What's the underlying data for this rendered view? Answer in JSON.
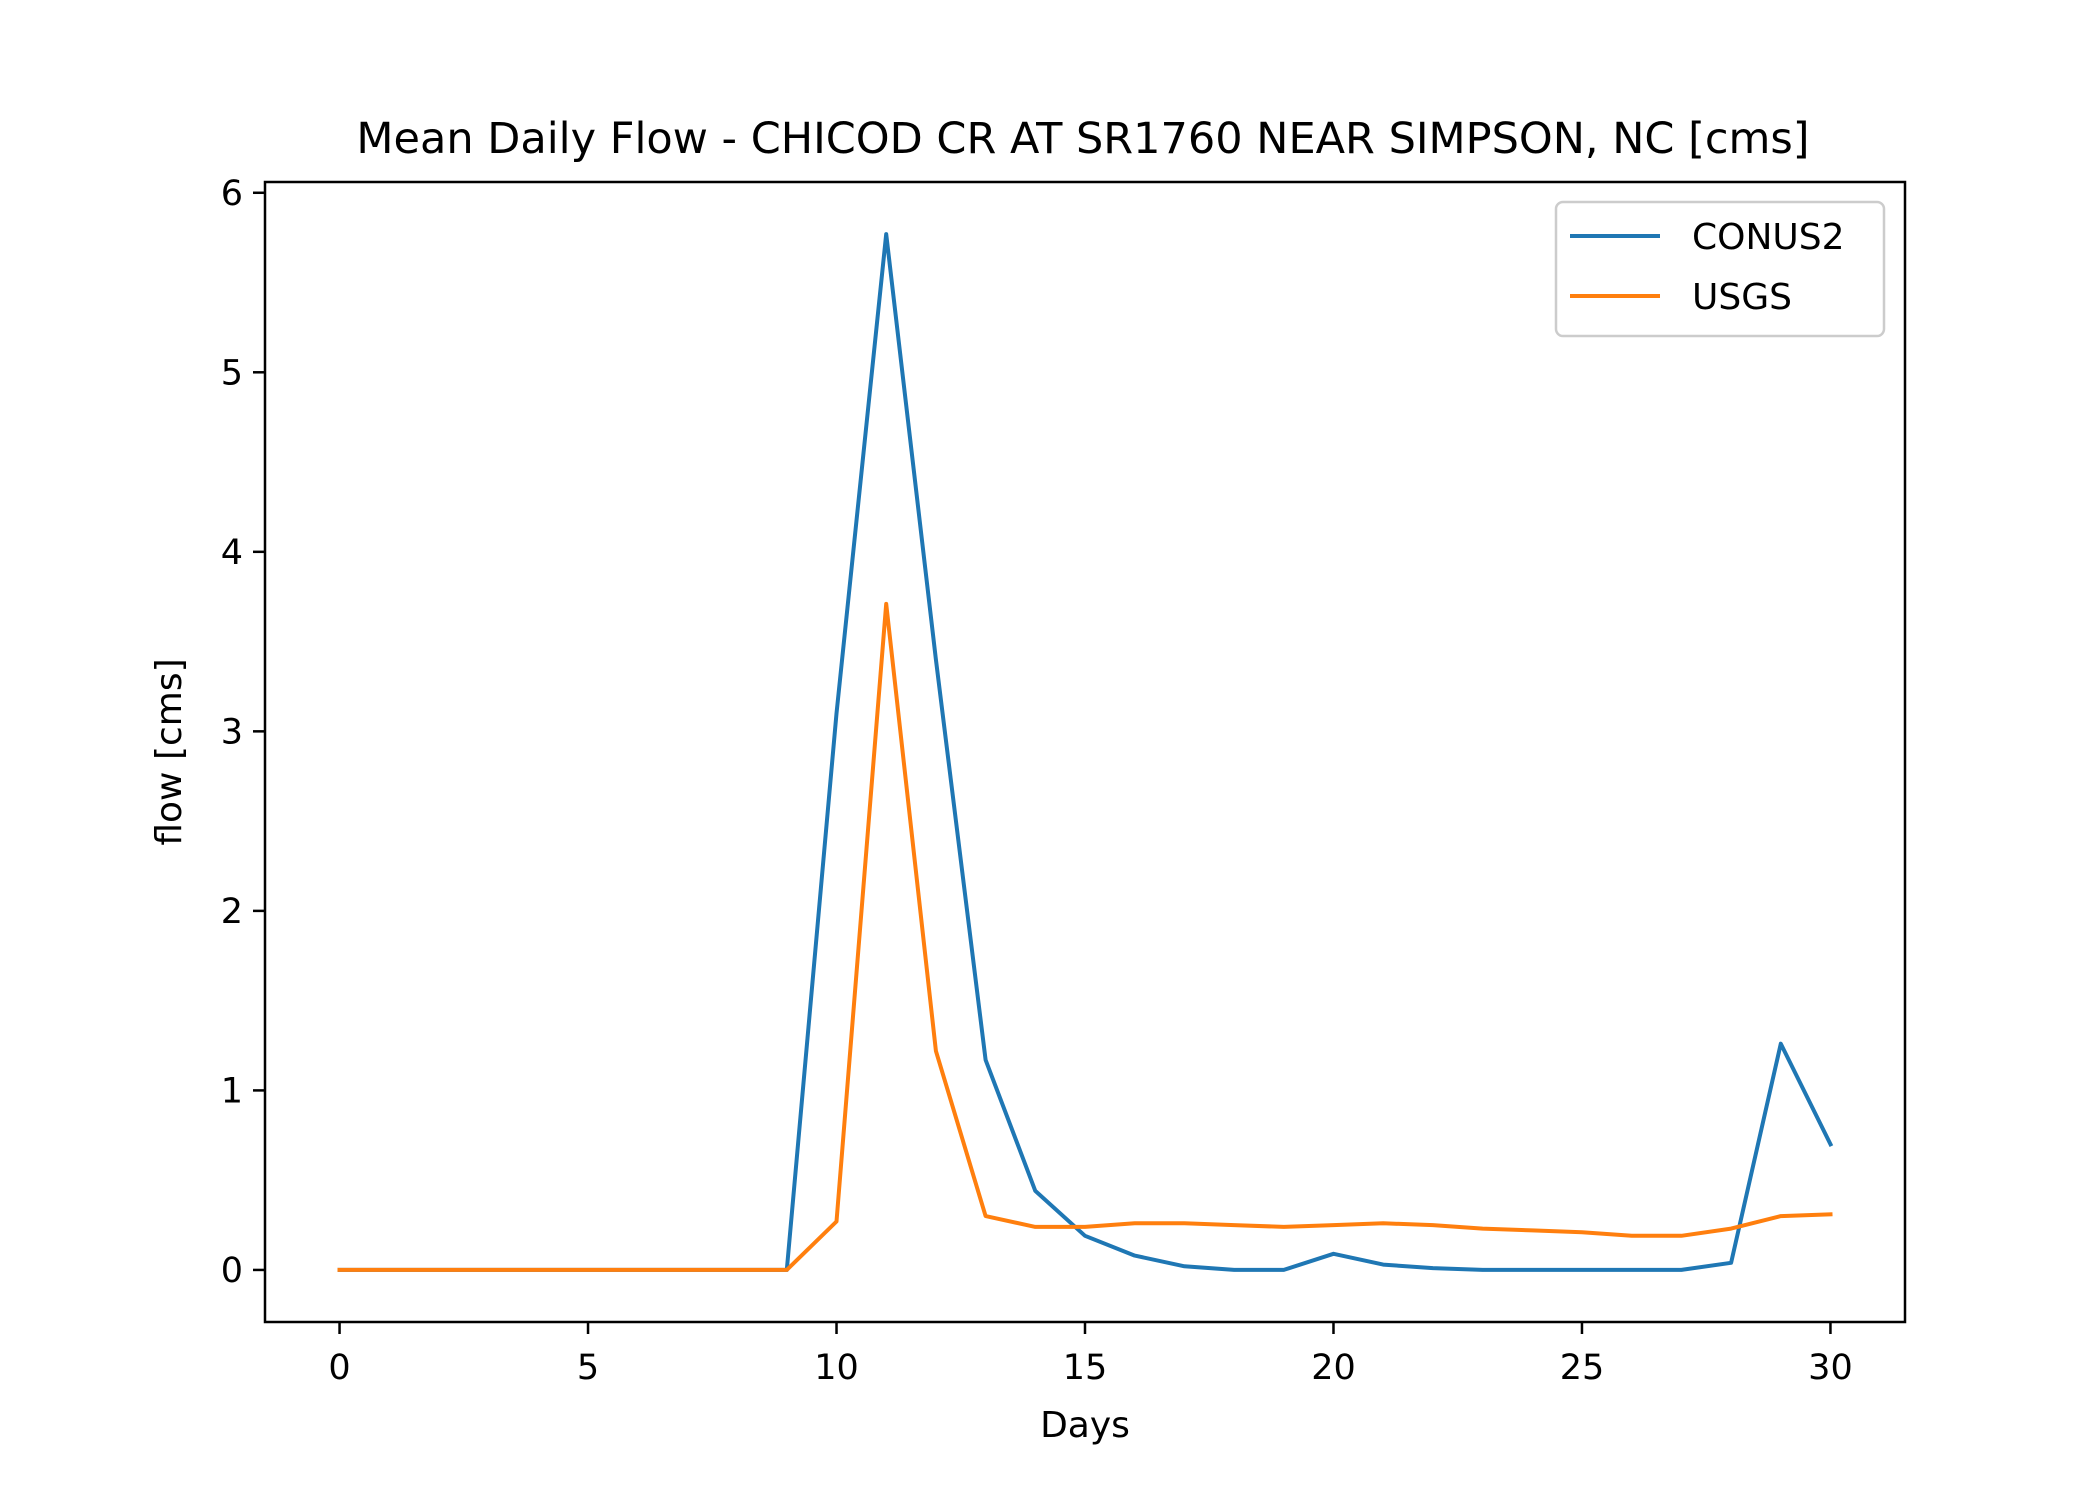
{
  "chart_data": {
    "type": "line",
    "title": "Mean Daily Flow - CHICOD CR AT SR1760 NEAR SIMPSON, NC [cms]",
    "xlabel": "Days",
    "ylabel": "flow [cms]",
    "xlim": [
      -1.5,
      31.5
    ],
    "ylim": [
      -0.29,
      6.06
    ],
    "xticks": [
      0,
      5,
      10,
      15,
      20,
      25,
      30
    ],
    "yticks": [
      0,
      1,
      2,
      3,
      4,
      5,
      6
    ],
    "xtick_labels": [
      "0",
      "5",
      "10",
      "15",
      "20",
      "25",
      "30"
    ],
    "ytick_labels": [
      "0",
      "1",
      "2",
      "3",
      "4",
      "5",
      "6"
    ],
    "grid": false,
    "legend_position": "upper right",
    "x": [
      0,
      1,
      2,
      3,
      4,
      5,
      6,
      7,
      8,
      9,
      10,
      11,
      12,
      13,
      14,
      15,
      16,
      17,
      18,
      19,
      20,
      21,
      22,
      23,
      24,
      25,
      26,
      27,
      28,
      29,
      30
    ],
    "series": [
      {
        "name": "CONUS2",
        "color": "#1f77b4",
        "values": [
          0,
          0,
          0,
          0,
          0,
          0,
          0,
          0,
          0,
          0,
          3.1,
          5.77,
          3.4,
          1.17,
          0.44,
          0.19,
          0.08,
          0.02,
          0.0,
          0.0,
          0.09,
          0.03,
          0.01,
          0.0,
          0.0,
          0.0,
          0.0,
          0.0,
          0.04,
          1.26,
          0.7
        ]
      },
      {
        "name": "USGS",
        "color": "#ff7f0e",
        "values": [
          0.0,
          0.0,
          0.0,
          0.0,
          0.0,
          0.0,
          0.0,
          0.0,
          0.0,
          0.0,
          0.27,
          3.71,
          1.22,
          0.3,
          0.24,
          0.24,
          0.26,
          0.26,
          0.25,
          0.24,
          0.25,
          0.26,
          0.25,
          0.23,
          0.22,
          0.21,
          0.19,
          0.19,
          0.23,
          0.3,
          0.31
        ]
      }
    ]
  }
}
